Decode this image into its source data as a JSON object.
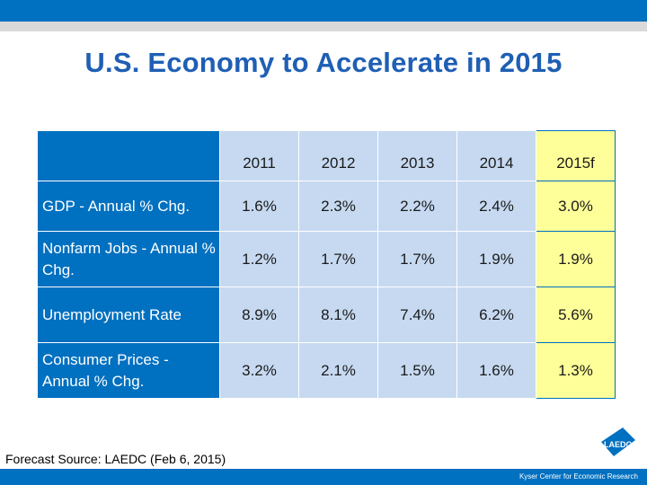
{
  "title": "U.S. Economy to Accelerate in 2015",
  "table": {
    "years": [
      "2011",
      "2012",
      "2013",
      "2014",
      "2015f"
    ],
    "rows": [
      {
        "label": "GDP - Annual % Chg.",
        "values": [
          "1.6%",
          "2.3%",
          "2.2%",
          "2.4%",
          "3.0%"
        ]
      },
      {
        "label": "Nonfarm Jobs - Annual % Chg.",
        "values": [
          "1.2%",
          "1.7%",
          "1.7%",
          "1.9%",
          "1.9%"
        ]
      },
      {
        "label": "Unemployment Rate",
        "values": [
          "8.9%",
          "8.1%",
          "7.4%",
          "6.2%",
          "5.6%"
        ]
      },
      {
        "label": "Consumer Prices - Annual % Chg.",
        "values": [
          "3.2%",
          "2.1%",
          "1.5%",
          "1.6%",
          "1.3%"
        ]
      }
    ]
  },
  "footer": {
    "source": "Forecast Source: LAEDC (Feb 6, 2015)",
    "org": "Kyser Center for Economic Research",
    "logo_text": "LAEDC"
  },
  "colors": {
    "brand_blue": "#0070C0",
    "title_blue": "#1F5FB4",
    "cell_light_blue": "#C6D9F1",
    "forecast_yellow": "#FFFF99"
  }
}
